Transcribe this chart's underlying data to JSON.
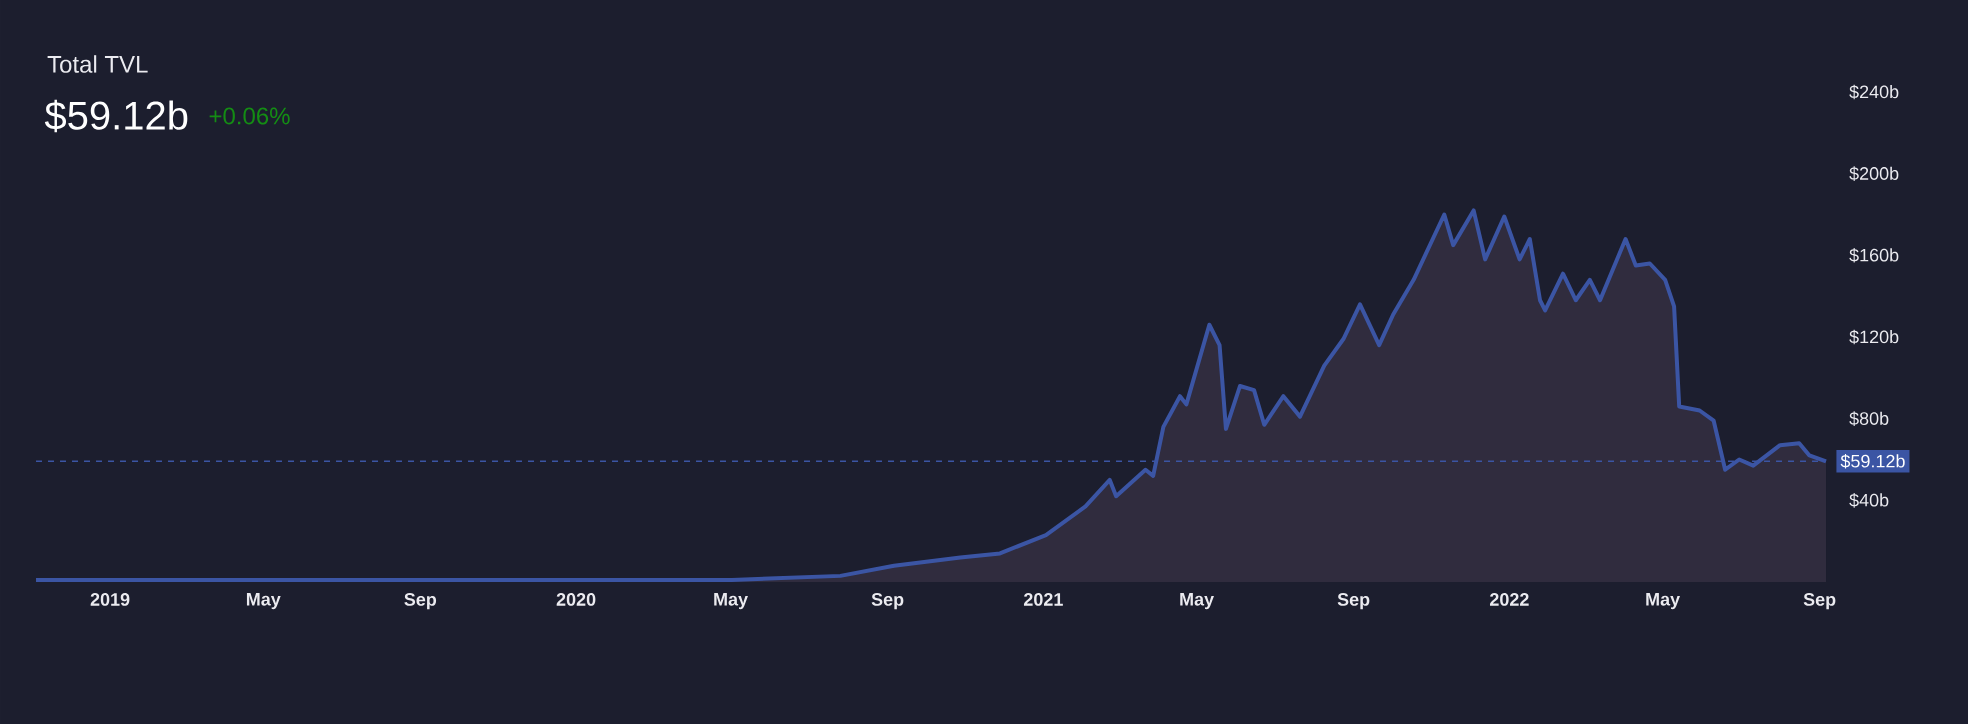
{
  "chart_data": {
    "type": "area",
    "title": "Total TVL",
    "subtitle": "$59.12b",
    "annotations": [
      "+0.06%"
    ],
    "x": [
      "2018-11-04",
      "2019-08-16",
      "2020-05-02",
      "2020-07-26",
      "2020-09-06",
      "2020-10-28",
      "2020-11-28",
      "2021-01-03",
      "2021-02-03",
      "2021-02-22",
      "2021-02-27",
      "2021-03-22",
      "2021-03-28",
      "2021-04-05",
      "2021-04-18",
      "2021-04-23",
      "2021-05-11",
      "2021-05-19",
      "2021-05-24",
      "2021-06-04",
      "2021-06-15",
      "2021-06-23",
      "2021-07-08",
      "2021-07-21",
      "2021-08-09",
      "2021-08-24",
      "2021-09-06",
      "2021-09-21",
      "2021-10-02",
      "2021-10-18",
      "2021-11-11",
      "2021-11-18",
      "2021-12-04",
      "2021-12-13",
      "2021-12-28",
      "2022-01-09",
      "2022-01-17",
      "2022-01-25",
      "2022-01-29",
      "2022-02-12",
      "2022-02-22",
      "2022-03-05",
      "2022-03-13",
      "2022-04-02",
      "2022-04-10",
      "2022-04-21",
      "2022-05-03",
      "2022-05-10",
      "2022-05-14",
      "2022-05-30",
      "2022-06-10",
      "2022-06-19",
      "2022-06-30",
      "2022-07-11",
      "2022-08-01",
      "2022-08-16",
      "2022-08-24",
      "2022-09-06"
    ],
    "series": [
      {
        "color": "#3b55a4",
        "values": [
          1,
          1,
          1,
          3,
          8,
          12,
          14,
          23,
          37,
          50,
          42,
          55,
          52,
          76,
          91,
          87,
          126,
          116,
          75,
          96,
          94,
          77,
          91,
          81,
          106,
          119,
          136,
          116,
          131,
          148,
          180,
          165,
          182,
          158,
          179,
          158,
          168,
          138,
          133,
          151,
          138,
          148,
          138,
          168,
          155,
          156,
          148,
          135,
          86,
          84,
          79,
          55,
          60,
          57,
          67,
          68,
          62,
          59.12
        ]
      }
    ],
    "xlim": [
      "2018-11-04",
      "2022-09-06"
    ],
    "xticks": [
      {
        "value": "2019-01-01",
        "label": "2019"
      },
      {
        "value": "2019-05-01",
        "label": "May"
      },
      {
        "value": "2019-09-01",
        "label": "Sep"
      },
      {
        "value": "2020-01-01",
        "label": "2020"
      },
      {
        "value": "2020-05-01",
        "label": "May"
      },
      {
        "value": "2020-09-01",
        "label": "Sep"
      },
      {
        "value": "2021-01-01",
        "label": "2021"
      },
      {
        "value": "2021-05-01",
        "label": "May"
      },
      {
        "value": "2021-09-01",
        "label": "Sep"
      },
      {
        "value": "2022-01-01",
        "label": "2022"
      },
      {
        "value": "2022-05-01",
        "label": "May"
      },
      {
        "value": "2022-09-01",
        "label": "Sep"
      }
    ],
    "ylim": [
      0,
      240
    ],
    "yticks": [
      {
        "value": 40,
        "label": "$40b"
      },
      {
        "value": 80,
        "label": "$80b"
      },
      {
        "value": 120,
        "label": "$120b"
      },
      {
        "value": 160,
        "label": "$160b"
      },
      {
        "value": 200,
        "label": "$200b"
      },
      {
        "value": 240,
        "label": "$240b"
      }
    ],
    "ref_lines": [
      {
        "axis": "y",
        "value": 59.12,
        "label": "$59.12b",
        "color": "#3b55a4",
        "line_style": "dashed"
      }
    ],
    "marker": "none",
    "line_style": "solid"
  }
}
